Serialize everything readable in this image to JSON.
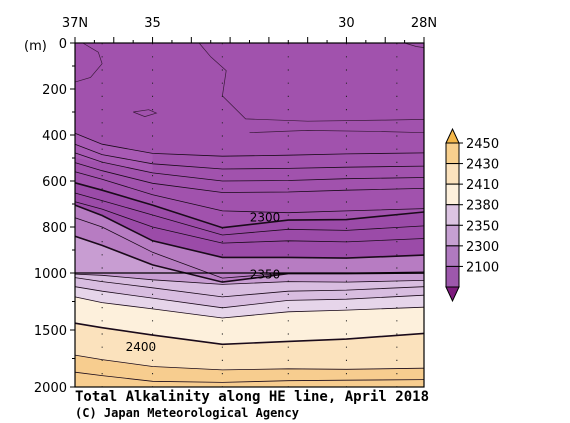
{
  "chart_data": {
    "type": "contour section",
    "title": "Total Alkalinity along HE line, April 2018",
    "credit": "(C) Japan Meteorological Agency",
    "x_axis": {
      "range_deg_N": [
        37,
        28
      ],
      "ticks": [
        {
          "value": 37,
          "label": "37N"
        },
        {
          "value": 35,
          "label": "35"
        },
        {
          "value": 30,
          "label": "30"
        },
        {
          "value": 28,
          "label": "28N"
        }
      ],
      "stations_deg_N": [
        37,
        36.3,
        35,
        33.2,
        31.5,
        30,
        28.7,
        28
      ]
    },
    "y_axis": {
      "unit": "(m)",
      "upper_range_m": [
        0,
        1000
      ],
      "lower_range_m": [
        1000,
        2000
      ],
      "ticks": [
        0,
        200,
        400,
        600,
        800,
        1000,
        1500,
        2000
      ]
    },
    "contour_levels": [
      2280,
      2290,
      2300,
      2310,
      2320,
      2330,
      2340,
      2350,
      2360,
      2370,
      2380,
      2390,
      2400,
      2410,
      2420,
      2430
    ],
    "labeled_contours": [
      {
        "text": "2300",
        "x_deg": 32.1,
        "depth_m": 755
      },
      {
        "text": "2350",
        "x_deg": 32.1,
        "depth_m": 1005
      },
      {
        "text": "2400",
        "x_deg": 35.3,
        "depth_m": 1640
      }
    ],
    "colorbar": {
      "labels": [
        "2450",
        "2430",
        "2410",
        "2380",
        "2350",
        "2300",
        "2100"
      ],
      "colors": [
        "#f5b84a",
        "#f8d08e",
        "#fbe2bd",
        "#fdf0dc",
        "#dcc4e2",
        "#c6a0d2",
        "#b07ac0",
        "#9d58ac",
        "#7d1b7d"
      ]
    },
    "fields": [
      {
        "name": "top_layer",
        "color": "#a152ad"
      },
      {
        "name": "deep_purple",
        "color": "#9b4ba8"
      },
      {
        "name": "gradient_1",
        "color": "#b77cc2"
      },
      {
        "name": "gradient_2",
        "color": "#c89dd2"
      },
      {
        "name": "gradient_3",
        "color": "#d8bde0"
      },
      {
        "name": "gradient_4",
        "color": "#e6d5ea"
      },
      {
        "name": "cream_1",
        "color": "#fdf0dc"
      },
      {
        "name": "cream_2",
        "color": "#fbe2bd"
      },
      {
        "name": "bottom_orange",
        "color": "#f7cd8f"
      }
    ]
  }
}
